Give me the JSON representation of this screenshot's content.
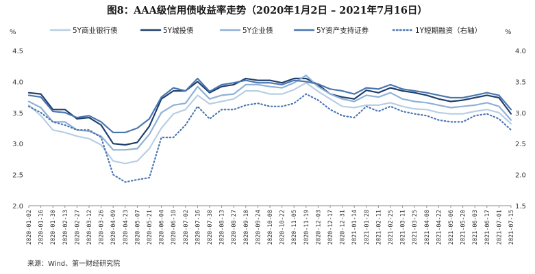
{
  "chart_data": {
    "type": "line",
    "title": "图8：AAA级信用债收益率走势（2020年1月2日 – 2021年7月16日）",
    "source": "来源：Wind、第一财经研究院",
    "left_unit": "%",
    "right_unit": "%",
    "y_left": {
      "min": 2.0,
      "max": 4.5,
      "ticks": [
        "2.0",
        "2.5",
        "3.0",
        "3.5",
        "4.0",
        "4.5"
      ]
    },
    "y_right": {
      "min": 1.5,
      "max": 4.0,
      "ticks": [
        "1.5",
        "2.0",
        "2.5",
        "3.0",
        "3.5",
        "4.0"
      ]
    },
    "x_ticks": [
      "2020-01-02",
      "2020-01-16",
      "2020-01-30",
      "2020-02-13",
      "2020-02-27",
      "2020-03-12",
      "2020-03-26",
      "2020-04-09",
      "2020-04-23",
      "2020-05-07",
      "2020-05-21",
      "2020-06-04",
      "2020-06-18",
      "2020-07-02",
      "2020-07-16",
      "2020-07-30",
      "2020-08-13",
      "2020-08-27",
      "2020-09-10",
      "2020-09-24",
      "2020-10-08",
      "2020-10-22",
      "2020-11-05",
      "2020-11-19",
      "2020-12-03",
      "2020-12-17",
      "2020-12-31",
      "2021-01-14",
      "2021-01-28",
      "2021-02-11",
      "2021-02-25",
      "2021-03-11",
      "2021-03-25",
      "2021-04-08",
      "2021-04-22",
      "2021-05-06",
      "2021-05-20",
      "2021-06-03",
      "2021-06-17",
      "2021-07-01",
      "2021-07-15"
    ],
    "series": [
      {
        "name": "5Y商业银行债",
        "axis": "left",
        "color": "#b7cee3",
        "dash": "solid",
        "width": 2.2,
        "values": [
          3.62,
          3.45,
          3.22,
          3.18,
          3.12,
          3.08,
          2.98,
          2.72,
          2.68,
          2.72,
          2.92,
          3.25,
          3.48,
          3.55,
          3.78,
          3.64,
          3.68,
          3.72,
          3.85,
          3.85,
          3.8,
          3.8,
          3.87,
          3.98,
          3.84,
          3.72,
          3.6,
          3.58,
          3.62,
          3.62,
          3.66,
          3.6,
          3.56,
          3.55,
          3.5,
          3.48,
          3.48,
          3.52,
          3.55,
          3.5,
          3.32
        ]
      },
      {
        "name": "5Y城投债",
        "axis": "left",
        "color": "#1f3f6e",
        "dash": "solid",
        "width": 2.2,
        "values": [
          3.82,
          3.8,
          3.55,
          3.55,
          3.4,
          3.42,
          3.3,
          3.0,
          2.98,
          3.02,
          3.28,
          3.72,
          3.85,
          3.85,
          4.0,
          3.82,
          3.92,
          3.95,
          4.05,
          4.02,
          4.02,
          3.98,
          4.05,
          4.05,
          3.95,
          3.8,
          3.75,
          3.72,
          3.86,
          3.82,
          3.9,
          3.85,
          3.82,
          3.78,
          3.72,
          3.68,
          3.7,
          3.74,
          3.78,
          3.74,
          3.48
        ]
      },
      {
        "name": "5Y企业债",
        "axis": "left",
        "color": "#8fb0d6",
        "dash": "solid",
        "width": 2.2,
        "values": [
          3.68,
          3.58,
          3.35,
          3.35,
          3.22,
          3.2,
          3.12,
          2.9,
          2.9,
          2.92,
          3.15,
          3.5,
          3.62,
          3.65,
          3.92,
          3.72,
          3.78,
          3.8,
          3.95,
          3.95,
          3.92,
          3.9,
          3.98,
          4.1,
          3.92,
          3.8,
          3.72,
          3.68,
          3.78,
          3.75,
          3.82,
          3.72,
          3.68,
          3.66,
          3.62,
          3.58,
          3.6,
          3.62,
          3.66,
          3.6,
          3.38
        ]
      },
      {
        "name": "5Y资产支持证券",
        "axis": "left",
        "color": "#4a76b0",
        "dash": "solid",
        "width": 2.2,
        "values": [
          3.78,
          3.75,
          3.52,
          3.5,
          3.42,
          3.45,
          3.35,
          3.18,
          3.18,
          3.25,
          3.4,
          3.75,
          3.9,
          3.85,
          4.05,
          3.84,
          3.95,
          3.98,
          4.02,
          3.98,
          3.98,
          3.95,
          4.02,
          4.0,
          3.96,
          3.88,
          3.85,
          3.8,
          3.9,
          3.88,
          3.95,
          3.88,
          3.85,
          3.82,
          3.78,
          3.74,
          3.74,
          3.78,
          3.82,
          3.78,
          3.55
        ]
      },
      {
        "name": "1Y短期融资（右轴）",
        "axis": "right",
        "color": "#4a76b0",
        "dash": "dotted",
        "width": 2.2,
        "values": [
          3.1,
          3.0,
          2.85,
          2.8,
          2.72,
          2.72,
          2.6,
          2.0,
          1.88,
          1.92,
          1.95,
          2.6,
          2.6,
          2.8,
          3.1,
          2.9,
          3.05,
          3.05,
          3.12,
          3.15,
          3.1,
          3.1,
          3.15,
          3.3,
          3.2,
          3.05,
          2.95,
          2.92,
          3.1,
          3.02,
          3.1,
          3.02,
          2.98,
          2.95,
          2.88,
          2.85,
          2.85,
          2.95,
          2.98,
          2.9,
          2.72
        ]
      }
    ],
    "legend_position": "top",
    "grid": false
  }
}
